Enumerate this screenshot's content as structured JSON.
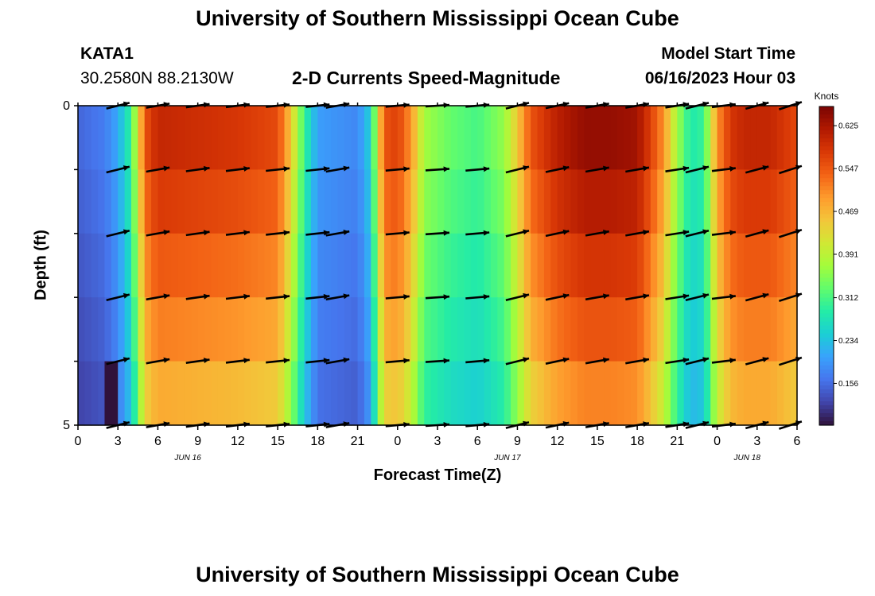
{
  "header": {
    "title": "University of Southern Mississippi Ocean Cube",
    "station_id": "KATA1",
    "coordinates": "30.2580N  88.2130W",
    "chart_title": "2-D Currents Speed-Magnitude",
    "model_start_label": "Model Start Time",
    "model_start_value": "06/16/2023 Hour 03"
  },
  "footer": {
    "title": "University of Southern Mississippi Ocean Cube"
  },
  "chart_data": {
    "type": "heatmap",
    "title": "2-D Currents Speed-Magnitude",
    "xlabel": "Forecast Time(Z)",
    "ylabel": "Depth (ft)",
    "x_ticks": [
      "0",
      "3",
      "6",
      "9",
      "12",
      "15",
      "18",
      "21",
      "0",
      "3",
      "6",
      "9",
      "12",
      "15",
      "18",
      "21",
      "0",
      "3",
      "6"
    ],
    "date_labels": [
      {
        "label": "JUN 16",
        "tick_index": 2.75
      },
      {
        "label": "JUN 17",
        "tick_index": 10.75
      },
      {
        "label": "JUN 18",
        "tick_index": 16.75
      }
    ],
    "y_ticks": [
      "0",
      "5"
    ],
    "depth_range": [
      0,
      5
    ],
    "depth_layers": 5,
    "time_hours": 54,
    "color_scale": {
      "label": "Knots",
      "ticks": [
        "0.625",
        "0.547",
        "0.469",
        "0.391",
        "0.312",
        "0.234",
        "0.156"
      ],
      "range": [
        0.08,
        0.66
      ],
      "colors": [
        "#30123b",
        "#4145ab",
        "#4675ed",
        "#39a2fc",
        "#1bcfd4",
        "#24eca6",
        "#61fc6c",
        "#a4fc3b",
        "#d1e834",
        "#f3c63a",
        "#fe9b2d",
        "#f36315",
        "#d93806",
        "#b11901",
        "#7a0403"
      ]
    },
    "speed_profile": {
      "hours": [
        0,
        2,
        3,
        4,
        4.5,
        5,
        6,
        9,
        12,
        15,
        16,
        17,
        18,
        21,
        22,
        22.5,
        23,
        24,
        25,
        26,
        28,
        30,
        32,
        33,
        34,
        36,
        38,
        40,
        42,
        43,
        44,
        44.5,
        45,
        46,
        47,
        48,
        49,
        50,
        52,
        53,
        54
      ],
      "speeds": [
        0.15,
        0.17,
        0.21,
        0.3,
        0.42,
        0.55,
        0.6,
        0.59,
        0.58,
        0.56,
        0.45,
        0.3,
        0.2,
        0.18,
        0.25,
        0.42,
        0.55,
        0.57,
        0.5,
        0.37,
        0.33,
        0.31,
        0.36,
        0.45,
        0.55,
        0.61,
        0.64,
        0.64,
        0.63,
        0.57,
        0.5,
        0.43,
        0.37,
        0.28,
        0.3,
        0.5,
        0.58,
        0.6,
        0.6,
        0.58,
        0.56
      ]
    },
    "depth_factors": [
      1.0,
      0.96,
      0.91,
      0.86,
      0.8
    ],
    "vector_times": [
      3,
      6,
      9,
      12,
      15,
      18,
      19.5,
      24,
      27,
      30,
      33,
      36,
      39,
      42,
      45,
      46.5,
      48.5,
      51,
      53.5
    ],
    "vector_angles_deg": [
      -14,
      -10,
      -8,
      -7,
      -6,
      -6,
      -10,
      -5,
      -4,
      -5,
      -14,
      -12,
      -10,
      -10,
      -9,
      -14,
      -7,
      -15,
      -18
    ],
    "bottom_min_marker": {
      "hour": 2.5,
      "value": 0.05
    }
  }
}
